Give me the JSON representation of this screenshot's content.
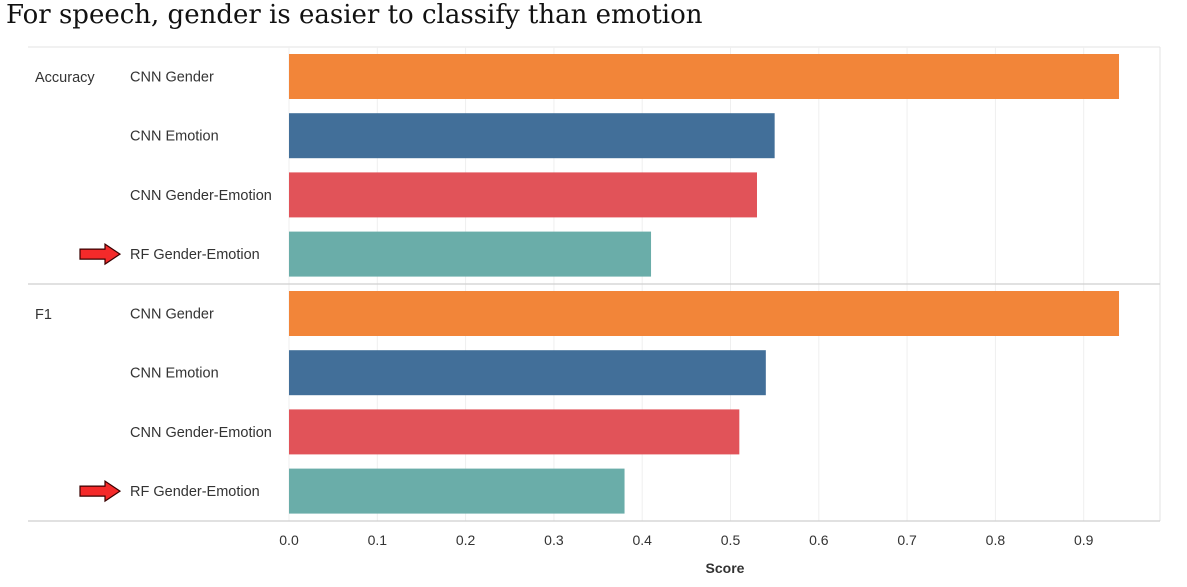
{
  "title": "For speech, gender is easier to classify than emotion",
  "chart_data": {
    "type": "bar",
    "orientation": "horizontal",
    "title": "For speech, gender is easier to classify than emotion",
    "xlabel": "Score",
    "xlim": [
      0,
      0.96
    ],
    "ticks": [
      "0.0",
      "0.1",
      "0.2",
      "0.3",
      "0.4",
      "0.5",
      "0.6",
      "0.7",
      "0.8",
      "0.9"
    ],
    "grid": true,
    "groups": [
      {
        "name": "Accuracy",
        "bars": [
          {
            "label": "CNN Gender",
            "value": 0.94,
            "color": "#F28539",
            "highlight": false
          },
          {
            "label": "CNN Emotion",
            "value": 0.55,
            "color": "#426F99",
            "highlight": false
          },
          {
            "label": "CNN Gender-Emotion",
            "value": 0.53,
            "color": "#E15359",
            "highlight": false
          },
          {
            "label": "RF Gender-Emotion",
            "value": 0.41,
            "color": "#6AADA9",
            "highlight": true
          }
        ]
      },
      {
        "name": "F1",
        "bars": [
          {
            "label": "CNN Gender",
            "value": 0.94,
            "color": "#F28539",
            "highlight": false
          },
          {
            "label": "CNN Emotion",
            "value": 0.54,
            "color": "#426F99",
            "highlight": false
          },
          {
            "label": "CNN Gender-Emotion",
            "value": 0.51,
            "color": "#E15359",
            "highlight": false
          },
          {
            "label": "RF Gender-Emotion",
            "value": 0.38,
            "color": "#6AADA9",
            "highlight": true
          }
        ]
      }
    ]
  }
}
